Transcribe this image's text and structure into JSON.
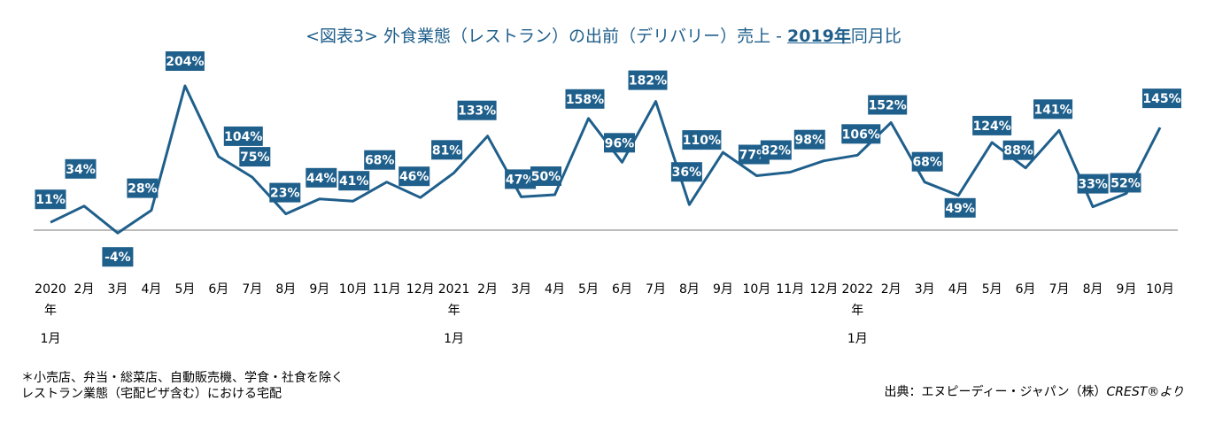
{
  "title": {
    "main": "<図表3> 外食業態（レストラン）の出前（デリバリー）売上 - ",
    "sub": "2019年",
    "suffix": "同月比"
  },
  "note": {
    "line1": "＊小売店、弁当・総菜店、自動販売機、学食・社食を除く",
    "line2": "レストラン業態（宅配ピザ含む）における宅配"
  },
  "source": {
    "label": "出典：エヌピーディー・ジャパン（株）",
    "brand": "CREST®より"
  },
  "colors": {
    "line": "#1f5f8b",
    "label_bg": "#1f5f8b",
    "label_text": "#ffffff",
    "axis": "#a6a6a6"
  },
  "chart_data": {
    "type": "line",
    "categories": [
      "2020年1月",
      "2月",
      "3月",
      "4月",
      "5月",
      "6月",
      "7月",
      "8月",
      "9月",
      "10月",
      "11月",
      "12月",
      "2021年1月",
      "2月",
      "3月",
      "4月",
      "5月",
      "6月",
      "7月",
      "8月",
      "9月",
      "10月",
      "11月",
      "12月",
      "2022年1月",
      "2月",
      "3月",
      "4月",
      "5月",
      "6月",
      "7月",
      "8月",
      "9月",
      "10月"
    ],
    "tick_labels": [
      [
        "2020",
        "年",
        "1月"
      ],
      [
        "2月"
      ],
      [
        "3月"
      ],
      [
        "4月"
      ],
      [
        "5月"
      ],
      [
        "6月"
      ],
      [
        "7月"
      ],
      [
        "8月"
      ],
      [
        "9月"
      ],
      [
        "10月"
      ],
      [
        "11月"
      ],
      [
        "12月"
      ],
      [
        "2021",
        "年",
        "1月"
      ],
      [
        "2月"
      ],
      [
        "3月"
      ],
      [
        "4月"
      ],
      [
        "5月"
      ],
      [
        "6月"
      ],
      [
        "7月"
      ],
      [
        "8月"
      ],
      [
        "9月"
      ],
      [
        "10月"
      ],
      [
        "11月"
      ],
      [
        "12月"
      ],
      [
        "2022",
        "年",
        "1月"
      ],
      [
        "2月"
      ],
      [
        "3月"
      ],
      [
        "4月"
      ],
      [
        "5月"
      ],
      [
        "6月"
      ],
      [
        "7月"
      ],
      [
        "8月"
      ],
      [
        "9月"
      ],
      [
        "10月"
      ]
    ],
    "values": [
      11,
      34,
      -4,
      28,
      204,
      104,
      75,
      23,
      44,
      41,
      68,
      46,
      81,
      133,
      47,
      50,
      158,
      96,
      182,
      36,
      110,
      77,
      82,
      98,
      106,
      152,
      68,
      49,
      124,
      88,
      141,
      33,
      52,
      145
    ],
    "labels": [
      "11%",
      "34%",
      "-4%",
      "28%",
      "204%",
      "104%",
      "75%",
      "23%",
      "44%",
      "41%",
      "68%",
      "46%",
      "81%",
      "133%",
      "47%",
      "50%",
      "158%",
      "96%",
      "182%",
      "36%",
      "110%",
      "77%",
      "82%",
      "98%",
      "106%",
      "152%",
      "68%",
      "49%",
      "124%",
      "88%",
      "141%",
      "33%",
      "52%",
      "145%"
    ],
    "unit": "%",
    "ylim": [
      -4,
      204
    ],
    "grid": false
  }
}
